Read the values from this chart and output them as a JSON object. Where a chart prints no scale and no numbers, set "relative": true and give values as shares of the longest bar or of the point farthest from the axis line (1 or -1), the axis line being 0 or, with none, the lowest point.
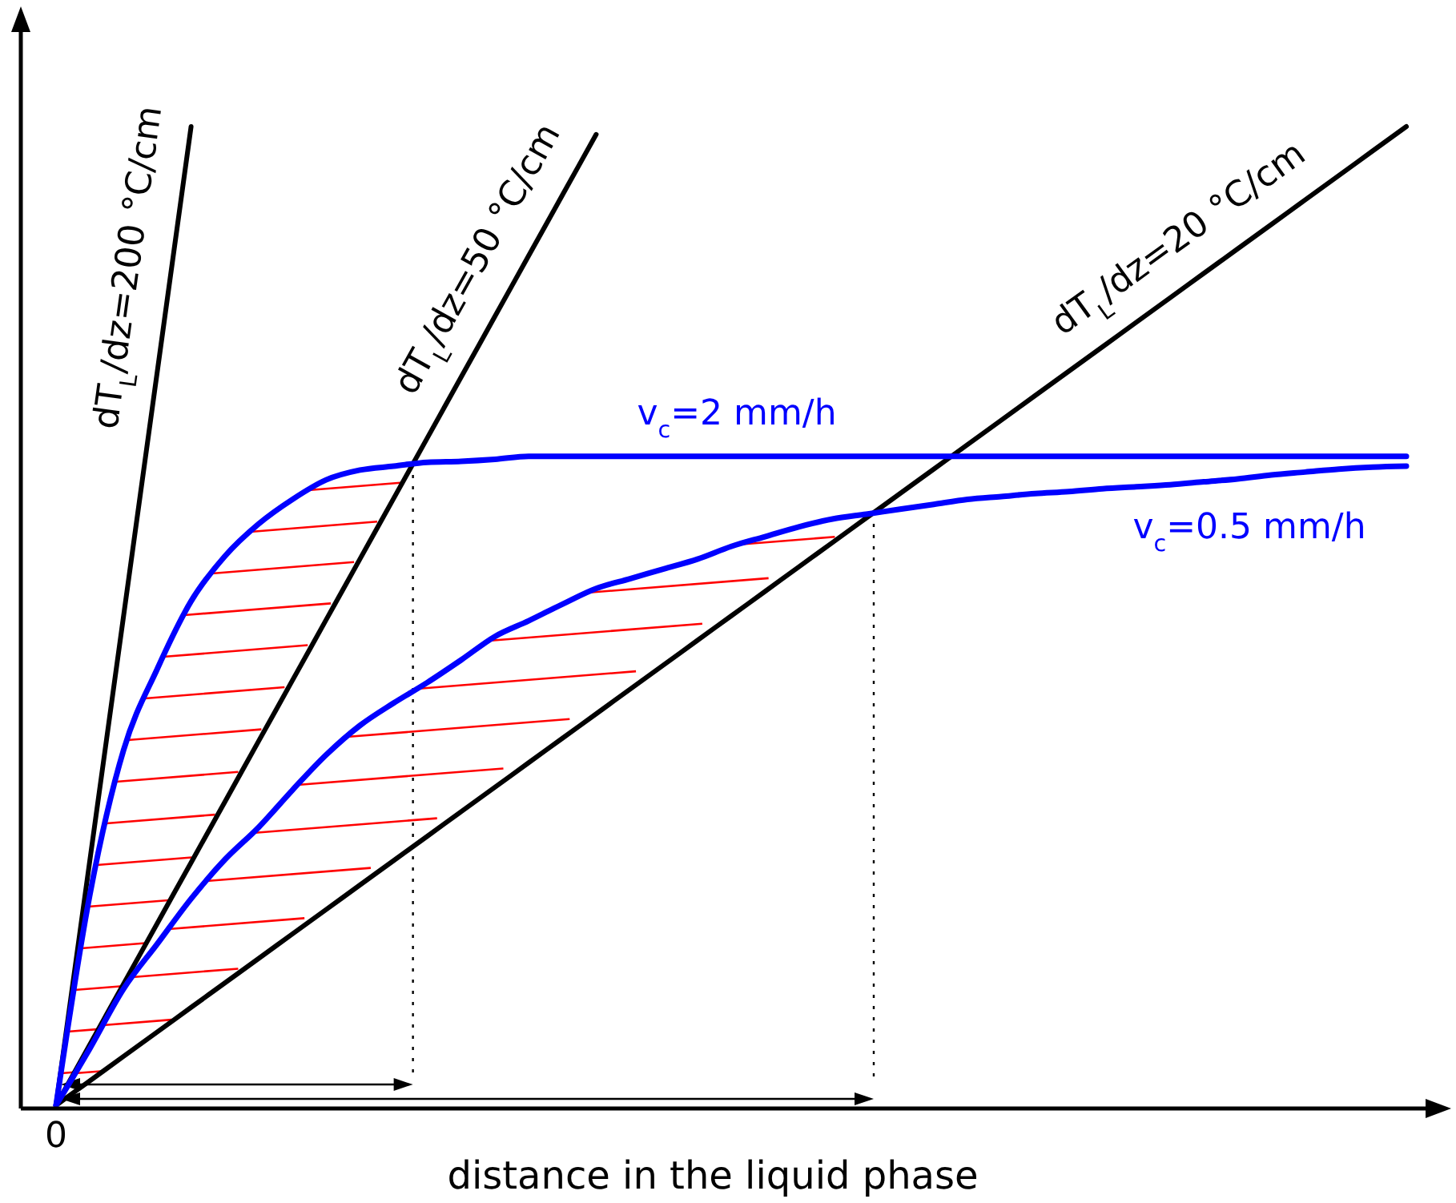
{
  "chart_data": {
    "type": "line",
    "relative": true,
    "xlabel": "distance in the liquid phase",
    "annotations": [
      "0"
    ],
    "categories": [
      null,
      null,
      null,
      null,
      null,
      null,
      null,
      null,
      null,
      null,
      null,
      null,
      null,
      null,
      null,
      null,
      null,
      null,
      null,
      null,
      null,
      null,
      null,
      null,
      null,
      null,
      null,
      null,
      null,
      null,
      null,
      null,
      null,
      null,
      null,
      null,
      null,
      null,
      null,
      null,
      null
    ],
    "series": [
      {
        "name": "dT$_{L}$/dz=200 °C/cm",
        "color": "#000000",
        "values": [
          0,
          0.25,
          0.5,
          0.75,
          1.0,
          null,
          null,
          null,
          null,
          null,
          null,
          null,
          null,
          null,
          null,
          null,
          null,
          null,
          null,
          null,
          null,
          null,
          null,
          null,
          null,
          null,
          null,
          null,
          null,
          null,
          null,
          null,
          null,
          null,
          null,
          null,
          null,
          null,
          null,
          null,
          null
        ]
      },
      {
        "name": "dT$_{L}$/dz=50 °C/cm",
        "color": "#000000",
        "values": [
          0,
          0.062,
          0.124,
          0.186,
          0.248,
          0.31,
          0.372,
          0.434,
          0.496,
          0.558,
          0.62,
          0.682,
          0.744,
          0.806,
          0.868,
          0.93,
          0.992,
          null,
          null,
          null,
          null,
          null,
          null,
          null,
          null,
          null,
          null,
          null,
          null,
          null,
          null,
          null,
          null,
          null,
          null,
          null,
          null,
          null,
          null,
          null,
          null
        ]
      },
      {
        "name": "dT$_{L}$/dz=20 °C/cm",
        "color": "#000000",
        "values": [
          0,
          0.025,
          0.05,
          0.075,
          0.1,
          0.125,
          0.15,
          0.175,
          0.2,
          0.225,
          0.25,
          0.275,
          0.3,
          0.325,
          0.35,
          0.375,
          0.4,
          0.425,
          0.45,
          0.475,
          0.5,
          0.525,
          0.55,
          0.575,
          0.6,
          0.625,
          0.65,
          0.675,
          0.7,
          0.725,
          0.75,
          0.775,
          0.8,
          0.825,
          0.85,
          0.875,
          0.9,
          0.925,
          0.95,
          0.975,
          1.0
        ]
      },
      {
        "name": "v$_{c}$=2 mm/h",
        "color": "#0000ff",
        "values": [
          0,
          0.215,
          0.363,
          0.446,
          0.515,
          0.561,
          0.594,
          0.619,
          0.639,
          0.649,
          0.653,
          0.657,
          0.658,
          0.66,
          0.663,
          0.663,
          0.663,
          0.663,
          0.663,
          0.663,
          0.663,
          0.663,
          0.663,
          0.663,
          0.663,
          0.663,
          0.663,
          0.663,
          0.663,
          0.663,
          0.663,
          0.663,
          0.663,
          0.663,
          0.663,
          0.663,
          0.663,
          0.663,
          0.663,
          0.663,
          0.663
        ]
      },
      {
        "name": "v$_{c}$=0.5 mm/h",
        "color": "#0000ff",
        "values": [
          0,
          0.058,
          0.119,
          0.165,
          0.211,
          0.251,
          0.284,
          0.322,
          0.358,
          0.388,
          0.411,
          0.432,
          0.455,
          0.479,
          0.495,
          0.512,
          0.528,
          0.538,
          0.548,
          0.558,
          0.571,
          0.581,
          0.591,
          0.599,
          0.604,
          0.609,
          0.614,
          0.619,
          0.622,
          0.625,
          0.627,
          0.63,
          0.632,
          0.634,
          0.637,
          0.64,
          0.644,
          0.647,
          0.65,
          0.652,
          0.653
        ]
      }
    ]
  }
}
